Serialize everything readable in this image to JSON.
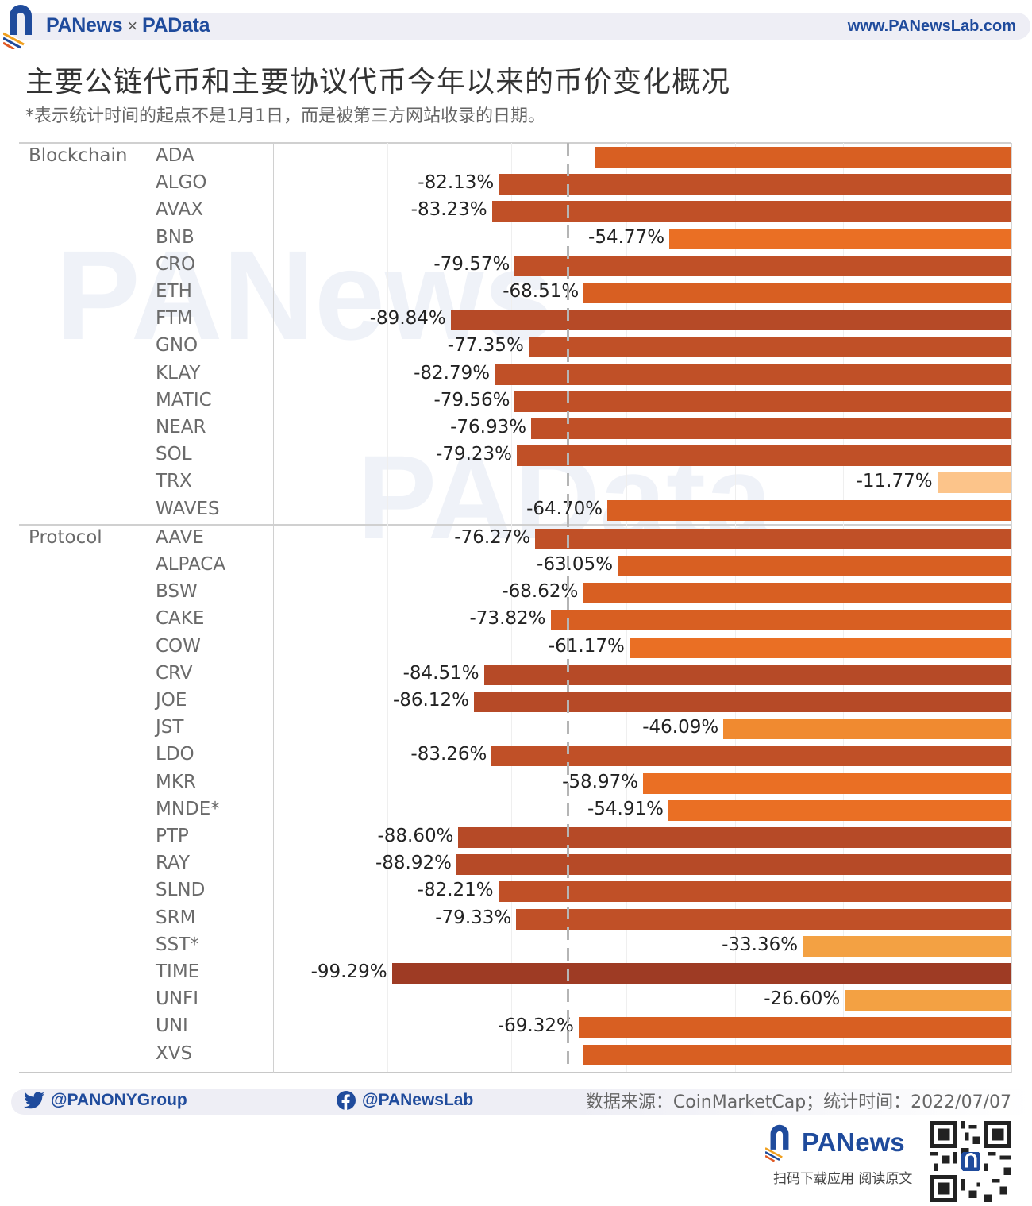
{
  "header": {
    "brand_left": "PANews",
    "brand_sep": "×",
    "brand_right": "PAData",
    "website": "www.PANewsLab.com",
    "title": "主要公链代币和主要协议代币今年以来的币价变化概况",
    "subtitle": "*表示统计时间的起点不是1月1日，而是被第三方网站收录的日期。"
  },
  "footer": {
    "twitter": "@PANONYGroup",
    "facebook": "@PANewsLab",
    "source": "数据来源：CoinMarketCap；统计时间：2022/07/07",
    "app_brand": "PANews",
    "cta": "扫码下载应用  阅读原文"
  },
  "colors": {
    "darkest": "#9e3b24",
    "dark": "#b64a27",
    "mid_dark": "#c05027",
    "mid": "#d85f22",
    "mid_light": "#ea6f24",
    "light": "#f08a30",
    "lighter": "#f3a143",
    "lightest": "#fcc48a",
    "brand_blue": "#1f4b9c",
    "brand_orange": "#f08a24"
  },
  "chart_data": {
    "type": "bar",
    "orientation": "horizontal",
    "title": "主要公链代币和主要协议代币今年以来的币价变化概况",
    "subtitle": "*表示统计时间的起点不是1月1日，而是被第三方网站收录的日期。",
    "xlabel": "",
    "ylabel": "",
    "xlim": [
      -100,
      0
    ],
    "unit": "%",
    "reference_line": "dashed vertical line near -70% (average)",
    "groups": [
      {
        "name": "Blockchain",
        "categories": [
          "ADA",
          "ALGO",
          "AVAX",
          "BNB",
          "CRO",
          "ETH",
          "FTM",
          "GNO",
          "KLAY",
          "MATIC",
          "NEAR",
          "SOL",
          "TRX",
          "WAVES"
        ],
        "values": [
          -66.6,
          -82.13,
          -83.23,
          -54.77,
          -79.57,
          -68.51,
          -89.84,
          -77.35,
          -82.79,
          -79.56,
          -76.93,
          -79.23,
          -11.77,
          -64.7
        ],
        "labels": [
          "",
          "-82.13%",
          "-83.23%",
          "-54.77%",
          "-79.57%",
          "-68.51%",
          "-89.84%",
          "-77.35%",
          "-82.79%",
          "-79.56%",
          "-76.93%",
          "-79.23%",
          "-11.77%",
          "-64.70%"
        ]
      },
      {
        "name": "Protocol",
        "categories": [
          "AAVE",
          "ALPACA",
          "BSW",
          "CAKE",
          "COW",
          "CRV",
          "JOE",
          "JST",
          "LDO",
          "MKR",
          "MNDE*",
          "PTP",
          "RAY",
          "SLND",
          "SRM",
          "SST*",
          "TIME",
          "UNFI",
          "UNI",
          "XVS"
        ],
        "values": [
          -76.27,
          -63.05,
          -68.62,
          -73.82,
          -61.17,
          -84.51,
          -86.12,
          -46.09,
          -83.26,
          -58.97,
          -54.91,
          -88.6,
          -88.92,
          -82.21,
          -79.33,
          -33.36,
          -99.29,
          -26.6,
          -69.32,
          -68.7
        ],
        "labels": [
          "-76.27%",
          "-63.05%",
          "-68.62%",
          "-73.82%",
          "-61.17%",
          "-84.51%",
          "-86.12%",
          "-46.09%",
          "-83.26%",
          "-58.97%",
          "-54.91%",
          "-88.60%",
          "-88.92%",
          "-82.21%",
          "-79.33%",
          "-33.36%",
          "-99.29%",
          "-26.60%",
          "-69.32%",
          ""
        ]
      }
    ]
  }
}
